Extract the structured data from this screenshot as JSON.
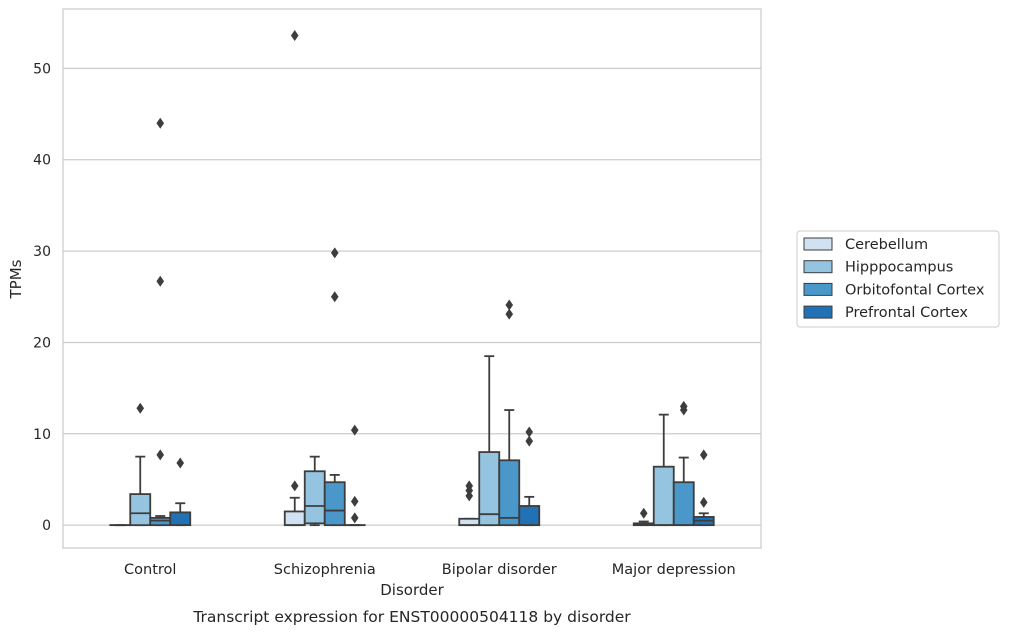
{
  "chart_data": {
    "type": "box",
    "title": "Transcript expression for ENST00000504118 by disorder",
    "xlabel": "Disorder",
    "ylabel": "TPMs",
    "ylim": [
      -2.5,
      56.5
    ],
    "yticks": [
      0,
      10,
      20,
      30,
      40,
      50
    ],
    "grid": "horizontal",
    "legend_position": "right",
    "categories": [
      "Control",
      "Schizophrenia",
      "Bipolar disorder",
      "Major depression"
    ],
    "series": [
      {
        "name": "Cerebellum",
        "color": "#d0e1f2",
        "boxes": [
          {
            "category": "Control",
            "q1": 0,
            "median": 0,
            "q3": 0,
            "whisker_low": 0,
            "whisker_high": 0,
            "outliers": []
          },
          {
            "category": "Schizophrenia",
            "q1": 0,
            "median": 0,
            "q3": 1.5,
            "whisker_low": 0,
            "whisker_high": 3.0,
            "outliers": [
              4.3,
              53.6
            ]
          },
          {
            "category": "Bipolar disorder",
            "q1": 0,
            "median": 0,
            "q3": 0.7,
            "whisker_low": 0,
            "whisker_high": 0.7,
            "outliers": [
              3.2,
              3.8,
              4.3
            ]
          },
          {
            "category": "Major depression",
            "q1": 0,
            "median": 0,
            "q3": 0.2,
            "whisker_low": 0,
            "whisker_high": 0.4,
            "outliers": [
              1.3
            ]
          }
        ]
      },
      {
        "name": "Hipppocampus",
        "color": "#94c4df",
        "boxes": [
          {
            "category": "Control",
            "q1": 0,
            "median": 1.3,
            "q3": 3.4,
            "whisker_low": 0,
            "whisker_high": 7.5,
            "outliers": [
              12.8
            ]
          },
          {
            "category": "Schizophrenia",
            "q1": 0.2,
            "median": 2.1,
            "q3": 5.9,
            "whisker_low": 0,
            "whisker_high": 7.5,
            "outliers": []
          },
          {
            "category": "Bipolar disorder",
            "q1": 0,
            "median": 1.2,
            "q3": 8.0,
            "whisker_low": 0,
            "whisker_high": 18.5,
            "outliers": []
          },
          {
            "category": "Major depression",
            "q1": 0,
            "median": 0,
            "q3": 6.4,
            "whisker_low": 0,
            "whisker_high": 12.1,
            "outliers": []
          }
        ]
      },
      {
        "name": "Orbitofontal Cortex",
        "color": "#4a98c9",
        "boxes": [
          {
            "category": "Control",
            "q1": 0,
            "median": 0.5,
            "q3": 0.8,
            "whisker_low": 0,
            "whisker_high": 1.0,
            "outliers": [
              7.7,
              26.7,
              44.0
            ]
          },
          {
            "category": "Schizophrenia",
            "q1": 0,
            "median": 1.6,
            "q3": 4.7,
            "whisker_low": 0,
            "whisker_high": 5.5,
            "outliers": [
              25.0,
              29.8
            ]
          },
          {
            "category": "Bipolar disorder",
            "q1": 0,
            "median": 0.8,
            "q3": 7.1,
            "whisker_low": 0,
            "whisker_high": 12.6,
            "outliers": [
              23.1,
              24.1
            ]
          },
          {
            "category": "Major depression",
            "q1": 0,
            "median": 0,
            "q3": 4.7,
            "whisker_low": 0,
            "whisker_high": 7.4,
            "outliers": [
              12.6,
              13.0
            ]
          }
        ]
      },
      {
        "name": "Prefrontal Cortex",
        "color": "#2171b5",
        "boxes": [
          {
            "category": "Control",
            "q1": 0,
            "median": 0,
            "q3": 1.4,
            "whisker_low": 0,
            "whisker_high": 2.4,
            "outliers": [
              6.8
            ]
          },
          {
            "category": "Schizophrenia",
            "q1": 0,
            "median": 0,
            "q3": 0,
            "whisker_low": 0,
            "whisker_high": 0,
            "outliers": [
              0.8,
              2.6,
              10.4
            ]
          },
          {
            "category": "Bipolar disorder",
            "q1": 0,
            "median": 0,
            "q3": 2.1,
            "whisker_low": 0,
            "whisker_high": 3.1,
            "outliers": [
              9.2,
              10.2
            ]
          },
          {
            "category": "Major depression",
            "q1": 0,
            "median": 0.5,
            "q3": 0.9,
            "whisker_low": 0,
            "whisker_high": 1.3,
            "outliers": [
              2.5,
              7.7
            ]
          }
        ]
      }
    ]
  }
}
